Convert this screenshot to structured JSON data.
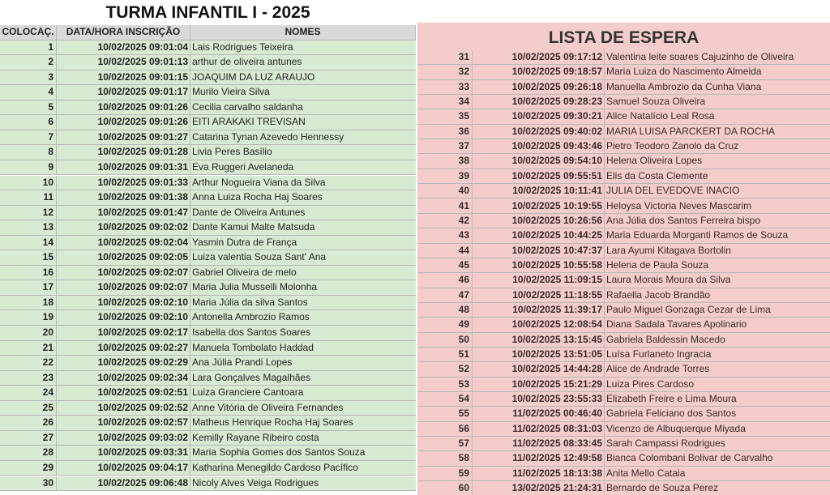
{
  "left": {
    "title": "TURMA INFANTIL I - 2025",
    "header": [
      "COLOCAÇ.",
      "DATA/HORA INSCRIÇÃO",
      "NOMES"
    ],
    "rows": [
      [
        1,
        "10/02/2025 09:01:04",
        "Lais Rodrigues Teixeira"
      ],
      [
        2,
        "10/02/2025 09:01:13",
        "arthur de oliveira antunes"
      ],
      [
        3,
        "10/02/2025 09:01:15",
        "JOAQUIM DA LUZ ARAUJO"
      ],
      [
        4,
        "10/02/2025 09:01:17",
        "Murilo Vieira Silva"
      ],
      [
        5,
        "10/02/2025 09:01:26",
        "Cecilia carvalho saldanha"
      ],
      [
        6,
        "10/02/2025 09:01:26",
        "EITI ARAKAKI TREVISAN"
      ],
      [
        7,
        "10/02/2025 09:01:27",
        "Catarina Tynan Azevedo Hennessy"
      ],
      [
        8,
        "10/02/2025 09:01:28",
        "Livia Peres Basílio"
      ],
      [
        9,
        "10/02/2025 09:01:31",
        "Eva Ruggeri Avelaneda"
      ],
      [
        10,
        "10/02/2025 09:01:33",
        "Arthur Nogueira Viana da Silva"
      ],
      [
        11,
        "10/02/2025 09:01:38",
        "Anna Luiza Rocha Haj Soares"
      ],
      [
        12,
        "10/02/2025 09:01:47",
        "Dante de Oliveira Antunes"
      ],
      [
        13,
        "10/02/2025 09:02:02",
        "Dante Kamui Malte Matsuda"
      ],
      [
        14,
        "10/02/2025 09:02:04",
        "Yasmin Dutra de França"
      ],
      [
        15,
        "10/02/2025 09:02:05",
        "Luiza valentia Souza Sant' Ana"
      ],
      [
        16,
        "10/02/2025 09:02:07",
        "Gabriel Oliveira de melo"
      ],
      [
        17,
        "10/02/2025 09:02:07",
        "Maria Julia Musselli Molonha"
      ],
      [
        18,
        "10/02/2025 09:02:10",
        "Maria Júlia da silva Santos"
      ],
      [
        19,
        "10/02/2025 09:02:10",
        "Antonella Ambrozio Ramos"
      ],
      [
        20,
        "10/02/2025 09:02:17",
        "Isabella dos Santos Soares"
      ],
      [
        21,
        "10/02/2025 09:02:27",
        "Manuela Tombolato Haddad"
      ],
      [
        22,
        "10/02/2025 09:02:29",
        "Ana Júlia Prandi Lopes"
      ],
      [
        23,
        "10/02/2025 09:02:34",
        "Lara Gonçalves Magalhães"
      ],
      [
        24,
        "10/02/2025 09:02:51",
        "Luiza Granciere Cantoara"
      ],
      [
        25,
        "10/02/2025 09:02:52",
        "Anne Vitória de Oliveira Fernandes"
      ],
      [
        26,
        "10/02/2025 09:02:57",
        "Matheus Henrique Rocha Haj Soares"
      ],
      [
        27,
        "10/02/2025 09:03:02",
        "Kemilly Rayane Ribeiro costa"
      ],
      [
        28,
        "10/02/2025 09:03:31",
        "Maria Sophia Gomes dos Santos Souza"
      ],
      [
        29,
        "10/02/2025 09:04:17",
        "Katharina Menegildo Cardoso Pacífico"
      ],
      [
        30,
        "10/02/2025 09:06:48",
        "Nicoly Alves Veiga Rodrigues"
      ]
    ]
  },
  "right": {
    "title": "LISTA DE ESPERA",
    "rows": [
      [
        31,
        "10/02/2025 09:17:12",
        "Valentina leite soares Cajuzinho de Oliveira"
      ],
      [
        32,
        "10/02/2025 09:18:57",
        "Maria Luiza do Nascimento Almeida"
      ],
      [
        33,
        "10/02/2025 09:26:18",
        "Manuella Ambrozio da Cunha Viana"
      ],
      [
        34,
        "10/02/2025 09:28:23",
        "Samuel Souza Oliveira"
      ],
      [
        35,
        "10/02/2025 09:30:21",
        "Alice Natalício Leal Rosa"
      ],
      [
        36,
        "10/02/2025 09:40:02",
        "MARIA LUISA PARCKERT DA ROCHA"
      ],
      [
        37,
        "10/02/2025 09:43:46",
        "Pietro Teodoro Zanolo da Cruz"
      ],
      [
        38,
        "10/02/2025 09:54:10",
        "Helena Oliveira Lopes"
      ],
      [
        39,
        "10/02/2025 09:55:51",
        "Elis da Costa Clemente"
      ],
      [
        40,
        "10/02/2025 10:11:41",
        "JULIA DEL EVEDOVE INACIO"
      ],
      [
        41,
        "10/02/2025 10:19:55",
        "Heloysa Victoria Neves Mascarim"
      ],
      [
        42,
        "10/02/2025 10:26:56",
        "Ana Júlia dos Santos Ferreira bispo"
      ],
      [
        43,
        "10/02/2025 10:44:25",
        "Maria Eduarda Morganti Ramos de Souza"
      ],
      [
        44,
        "10/02/2025 10:47:37",
        "Lara Ayumi Kitagava Bortolin"
      ],
      [
        45,
        "10/02/2025 10:55:58",
        "Helena de Paula Souza"
      ],
      [
        46,
        "10/02/2025 11:09:15",
        "Laura Morais Moura da Silva"
      ],
      [
        47,
        "10/02/2025 11:18:55",
        "Rafaella Jacob Brandão"
      ],
      [
        48,
        "10/02/2025 11:39:17",
        "Paulo Miguel Gonzaga Cezar de Lima"
      ],
      [
        49,
        "10/02/2025 12:08:54",
        "Diana Sadala Tavares Apolinario"
      ],
      [
        50,
        "10/02/2025 13:15:45",
        "Gabriela Baldessin Macedo"
      ],
      [
        51,
        "10/02/2025 13:51:05",
        "Luísa Furlaneto Ingracia"
      ],
      [
        52,
        "10/02/2025 14:44:28",
        "Alice de Andrade Torres"
      ],
      [
        53,
        "10/02/2025 15:21:29",
        "Luiza Pires Cardoso"
      ],
      [
        54,
        "10/02/2025 23:55:33",
        "Elizabeth Freire e Lima Moura"
      ],
      [
        55,
        "11/02/2025 00:46:40",
        "Gabriela Feliciano dos Santos"
      ],
      [
        56,
        "11/02/2025 08:31:03",
        "Vicenzo de Albuquerque Miyada"
      ],
      [
        57,
        "11/02/2025 08:33:45",
        "Sarah Campassi Rodrigues"
      ],
      [
        58,
        "11/02/2025 12:49:58",
        "Bianca Colombani Bolivar de Carvalho"
      ],
      [
        59,
        "11/02/2025 18:13:38",
        "Anita Mello Cataia"
      ],
      [
        60,
        "13/02/2025 21:24:31",
        "Bernardo de Souza Perez"
      ]
    ]
  }
}
